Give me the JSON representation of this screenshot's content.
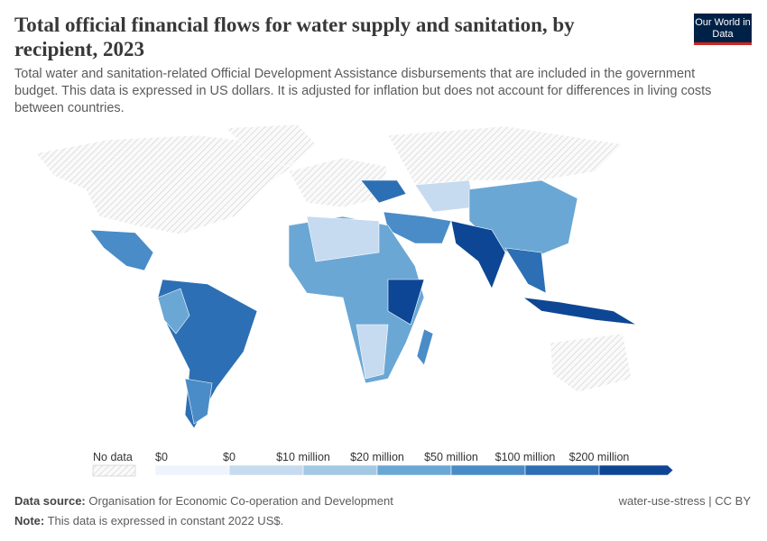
{
  "header": {
    "title": "Total official financial flows for water supply and sanitation, by recipient, 2023",
    "subtitle": "Total water and sanitation-related Official Development Assistance disbursements that are included in the government budget. This data is expressed in US dollars. It is adjusted for inflation but does not account for differences in living costs between countries.",
    "logo": "Our World in Data"
  },
  "legend": {
    "no_data": "No data",
    "labels": [
      "$0",
      "$0",
      "$10 million",
      "$20 million",
      "$50 million",
      "$100 million",
      "$200 million"
    ],
    "colors": [
      "#eef4fb",
      "#c6dbef",
      "#a3c8e4",
      "#6aa7d5",
      "#4a8cc7",
      "#2d6fb4",
      "#0d4694"
    ]
  },
  "footer": {
    "source_label": "Data source:",
    "source": "Organisation for Economic Co-operation and Development",
    "note_label": "Note:",
    "note": "This data is expressed in constant 2022 US$.",
    "license": "water-use-stress | CC BY"
  }
}
